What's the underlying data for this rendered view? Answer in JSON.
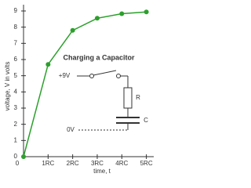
{
  "chart_data": {
    "type": "line",
    "x_label": "time, t",
    "y_label": "voltage, V in volts",
    "x": [
      0,
      1,
      2,
      3,
      4,
      5
    ],
    "series": [
      {
        "color": "#2ca02c",
        "values": [
          0,
          5.7,
          7.8,
          8.55,
          8.83,
          8.94
        ]
      }
    ],
    "xlim": [
      0,
      5.3
    ],
    "ylim": [
      0,
      9
    ],
    "xticks": [
      0,
      {
        "value": 1,
        "label": "1RC"
      },
      {
        "value": 2,
        "label": "2RC"
      },
      {
        "value": 3,
        "label": "3RC"
      },
      {
        "value": 4,
        "label": "4RC"
      },
      {
        "value": 5,
        "label": "5RC"
      }
    ],
    "yticks": [
      0,
      1,
      2,
      3,
      4,
      5,
      6,
      7,
      8,
      9
    ],
    "annotations": [
      "Charging a Capacitor",
      "+9V",
      "R",
      "C",
      "0V"
    ]
  }
}
